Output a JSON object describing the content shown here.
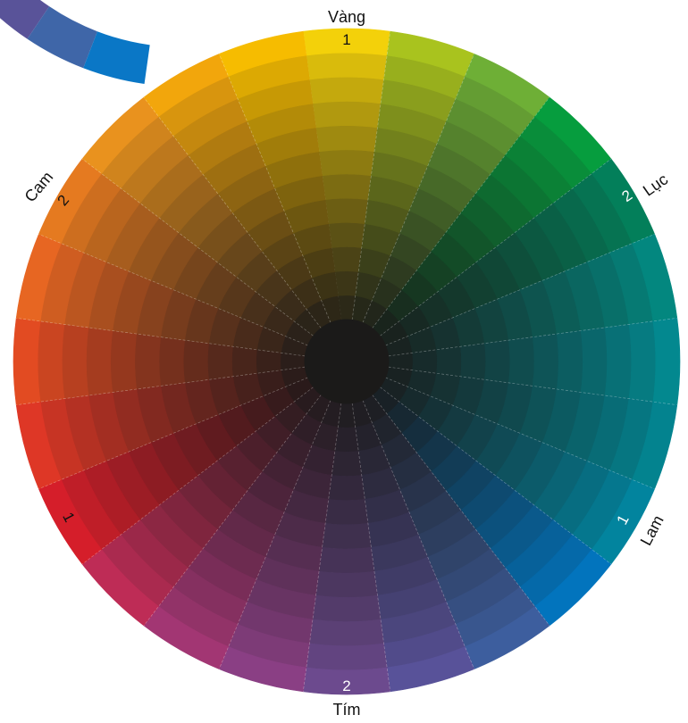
{
  "wheel": {
    "labels": {
      "yellow": "Vàng",
      "green": "Lục",
      "blue": "Lam",
      "purple": "Tím",
      "orange": "Cam"
    },
    "numbers": {
      "yellow": "1",
      "green": "2",
      "blue": "1",
      "purple": "2",
      "orange": "2",
      "red": "1"
    },
    "hue_colors": [
      "#F3D10A",
      "#A9C31E",
      "#6EAF36",
      "#069D3E",
      "#037F5A",
      "#03877F",
      "#03888F",
      "#03838F",
      "#02849E",
      "#0274BD",
      "#3D5E9E",
      "#585299",
      "#6C4A8E",
      "#8A3F84",
      "#A23673",
      "#BE2C56",
      "#D51E2A",
      "#DE3726",
      "#E24B22",
      "#E76622",
      "#E57A20",
      "#E9921E",
      "#F2A60C",
      "#F6BC00"
    ],
    "center_color": "#1B1A19",
    "rings": 12
  }
}
